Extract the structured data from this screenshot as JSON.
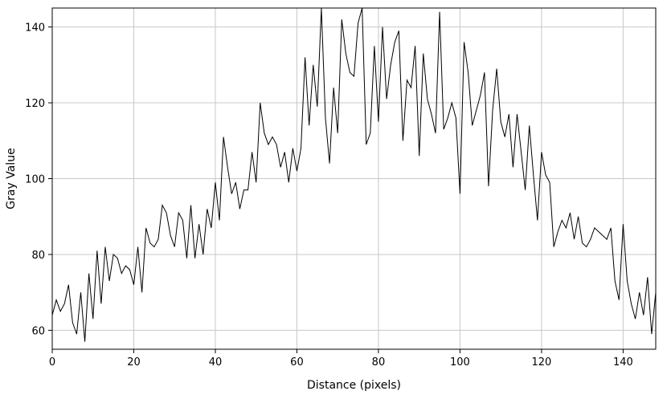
{
  "chart_data": {
    "type": "line",
    "title": "",
    "xlabel": "Distance (pixels)",
    "ylabel": "Gray Value",
    "xlim": [
      0,
      148
    ],
    "ylim": [
      55,
      145
    ],
    "x_ticks": [
      0,
      20,
      40,
      60,
      80,
      100,
      120,
      140
    ],
    "y_ticks": [
      60,
      80,
      100,
      120,
      140
    ],
    "grid": true,
    "legend": "none",
    "colors": {
      "line": "#000000",
      "grid": "#c8c8c8",
      "frame": "#000000"
    },
    "series": [
      {
        "x": [
          0,
          1,
          2,
          3,
          4,
          5,
          6,
          7,
          8,
          9,
          10,
          11,
          12,
          13,
          14,
          15,
          16,
          17,
          18,
          19,
          20,
          21,
          22,
          23,
          24,
          25,
          26,
          27,
          28,
          29,
          30,
          31,
          32,
          33,
          34,
          35,
          36,
          37,
          38,
          39,
          40,
          41,
          42,
          43,
          44,
          45,
          46,
          47,
          48,
          49,
          50,
          51,
          52,
          53,
          54,
          55,
          56,
          57,
          58,
          59,
          60,
          61,
          62,
          63,
          64,
          65,
          66,
          67,
          68,
          69,
          70,
          71,
          72,
          73,
          74,
          75,
          76,
          77,
          78,
          79,
          80,
          81,
          82,
          83,
          84,
          85,
          86,
          87,
          88,
          89,
          90,
          91,
          92,
          93,
          94,
          95,
          96,
          97,
          98,
          99,
          100,
          101,
          102,
          103,
          104,
          105,
          106,
          107,
          108,
          109,
          110,
          111,
          112,
          113,
          114,
          115,
          116,
          117,
          118,
          119,
          120,
          121,
          122,
          123,
          124,
          125,
          126,
          127,
          128,
          129,
          130,
          131,
          132,
          133,
          134,
          135,
          136,
          137,
          138,
          139,
          140,
          141,
          142,
          143,
          144,
          145,
          146,
          147,
          148
        ],
        "values": [
          64,
          68,
          65,
          67,
          72,
          62,
          59,
          70,
          57,
          75,
          63,
          81,
          67,
          82,
          73,
          80,
          79,
          75,
          77,
          76,
          72,
          82,
          70,
          87,
          83,
          82,
          84,
          93,
          91,
          85,
          82,
          91,
          89,
          79,
          93,
          79,
          88,
          80,
          92,
          87,
          99,
          89,
          111,
          103,
          96,
          99,
          92,
          97,
          97,
          107,
          99,
          120,
          112,
          109,
          111,
          109,
          103,
          107,
          99,
          108,
          102,
          108,
          132,
          114,
          130,
          119,
          145,
          116,
          104,
          124,
          112,
          142,
          133,
          128,
          127,
          141,
          145,
          109,
          112,
          135,
          115,
          140,
          121,
          130,
          136,
          139,
          110,
          126,
          124,
          135,
          106,
          133,
          121,
          117,
          112,
          144,
          113,
          116,
          120,
          116,
          96,
          136,
          128,
          114,
          118,
          122,
          128,
          98,
          118,
          129,
          115,
          111,
          117,
          103,
          117,
          107,
          97,
          114,
          101,
          89,
          107,
          101,
          99,
          82,
          86,
          89,
          87,
          91,
          84,
          90,
          83,
          82,
          84,
          87,
          86,
          85,
          84,
          87,
          73,
          68,
          88,
          73,
          67,
          63,
          70,
          64,
          74,
          59,
          70
        ]
      }
    ]
  }
}
